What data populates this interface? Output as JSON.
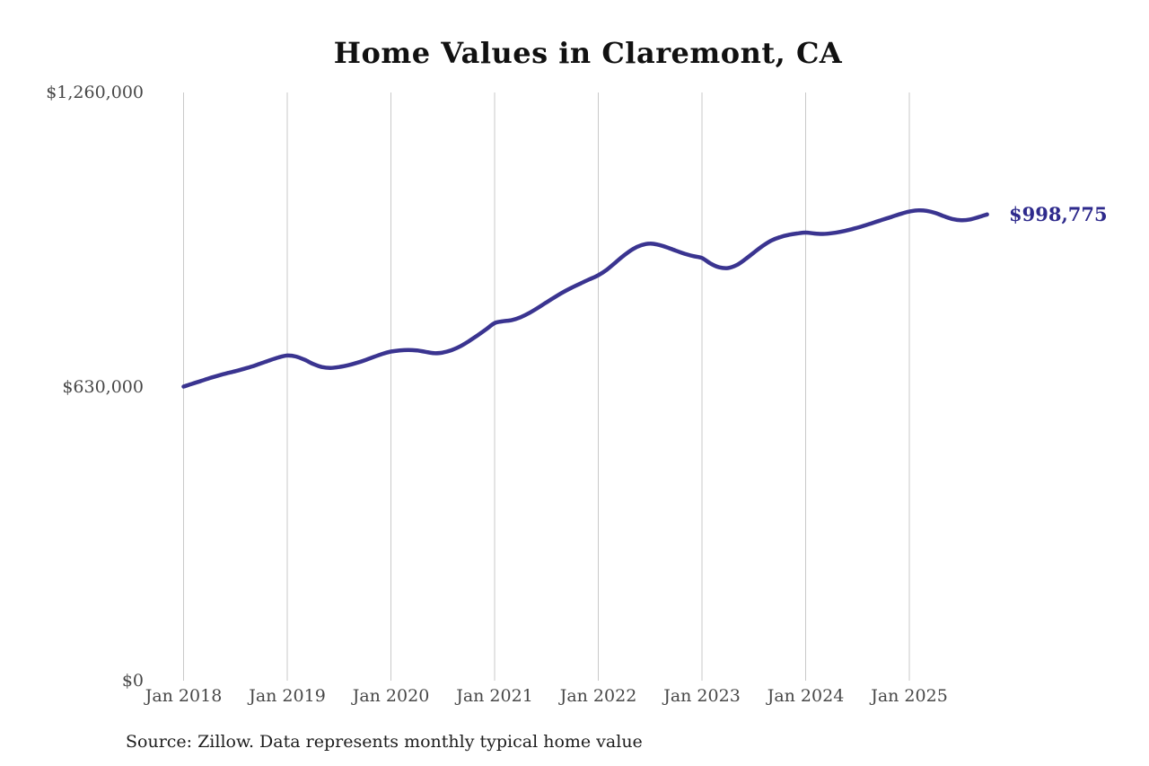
{
  "header": {
    "title": "Home Values in Claremont, CA"
  },
  "source_note": "Source: Zillow. Data represents monthly typical home value",
  "colors": {
    "line": "#3a3490",
    "end_label": "#2e2a8c",
    "grid": "#c9c9c9",
    "axis_text": "#474747",
    "title_text": "#111111",
    "background": "#ffffff"
  },
  "chart_data": {
    "type": "line",
    "title": "Home Values in Claremont, CA",
    "xlabel": "",
    "ylabel": "",
    "unit": "USD",
    "grid": "vertical-only",
    "legend": "none",
    "ylim": [
      0,
      1260000
    ],
    "y_ticks": [
      {
        "label": "$0",
        "value": 0
      },
      {
        "label": "$630,000",
        "value": 630000
      },
      {
        "label": "$1,260,000",
        "value": 1260000
      }
    ],
    "x_start_month": "2018-01",
    "x_end_month": "2025-10",
    "x_cadence": "monthly",
    "x_tick_labels": [
      "Jan 2018",
      "Jan 2019",
      "Jan 2020",
      "Jan 2021",
      "Jan 2022",
      "Jan 2023",
      "Jan 2024",
      "Jan 2025"
    ],
    "x_tick_month_index": [
      0,
      12,
      24,
      36,
      48,
      60,
      72,
      84
    ],
    "final_value": 998775,
    "final_value_label": "$998,775",
    "series": [
      {
        "name": "Monthly typical home value",
        "values": [
          630000,
          636000,
          642000,
          648000,
          653500,
          658500,
          663000,
          668000,
          673500,
          680000,
          686500,
          692500,
          696500,
          694500,
          687500,
          678500,
          672000,
          670000,
          672000,
          675500,
          680500,
          686500,
          693500,
          700000,
          705000,
          707500,
          708500,
          707500,
          704500,
          701500,
          703000,
          708000,
          716000,
          727000,
          739500,
          752500,
          766000,
          770000,
          772500,
          778500,
          787500,
          798500,
          810500,
          822000,
          833000,
          842500,
          851500,
          860000,
          868500,
          880500,
          896000,
          911500,
          924500,
          933000,
          936500,
          933500,
          928000,
          921000,
          914500,
          909500,
          905500,
          893500,
          885500,
          884000,
          890000,
          902500,
          917000,
          931000,
          942500,
          950000,
          955000,
          958000,
          960000,
          958000,
          957000,
          958500,
          961500,
          965500,
          970500,
          976000,
          982000,
          988000,
          994000,
          1000000,
          1005000,
          1007500,
          1006500,
          1002000,
          995000,
          989000,
          986500,
          988000,
          993000,
          998775
        ]
      }
    ]
  }
}
